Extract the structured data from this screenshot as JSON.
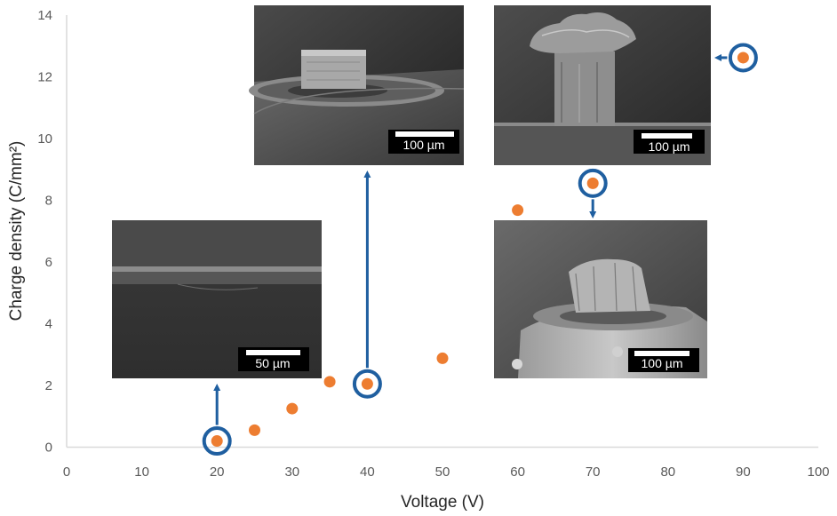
{
  "chart_data": {
    "type": "scatter",
    "xlabel": "Voltage (V)",
    "ylabel": "Charge density (C/mm²)",
    "xlim": [
      0,
      100
    ],
    "ylim": [
      0,
      14
    ],
    "x_ticks": [
      0,
      10,
      20,
      30,
      40,
      50,
      60,
      70,
      80,
      90,
      100
    ],
    "y_ticks": [
      0,
      2,
      4,
      6,
      8,
      10,
      12,
      14
    ],
    "grid": false,
    "marker_color": "#ED7D31",
    "highlight_color": "#1F5FA0",
    "series": [
      {
        "x": [
          20,
          25,
          30,
          35,
          40,
          50,
          60,
          70,
          90
        ],
        "y": [
          0.2,
          0.55,
          1.25,
          2.12,
          2.05,
          2.88,
          7.68,
          8.55,
          12.62
        ]
      }
    ],
    "highlighted_points": [
      {
        "x": 20,
        "y": 0.2
      },
      {
        "x": 40,
        "y": 2.05
      },
      {
        "x": 70,
        "y": 8.55
      },
      {
        "x": 90,
        "y": 12.62
      }
    ],
    "insets": [
      {
        "name": "inset-20v",
        "x": 20,
        "scale_bar": "50 µm"
      },
      {
        "name": "inset-40v",
        "x": 40,
        "scale_bar": "100 µm"
      },
      {
        "name": "inset-90v",
        "x": 90,
        "scale_bar": "100 µm"
      },
      {
        "name": "inset-70v",
        "x": 70,
        "scale_bar": "100 µm"
      }
    ]
  }
}
